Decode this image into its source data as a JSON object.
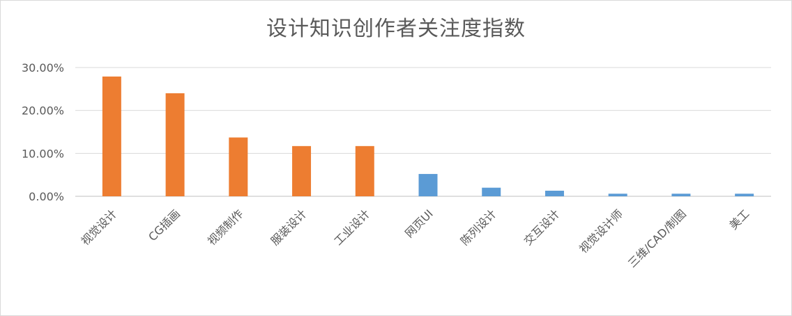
{
  "chart_data": {
    "type": "bar",
    "title": "设计知识创作者关注度指数",
    "categories": [
      "视觉设计",
      "CG插画",
      "视频制作",
      "服装设计",
      "工业设计",
      "网页UI",
      "陈列设计",
      "交互设计",
      "视觉设计师",
      "三维/CAD/制图",
      "美工"
    ],
    "values": [
      27.9,
      24.0,
      13.7,
      11.7,
      11.7,
      5.2,
      2.0,
      1.3,
      0.6,
      0.6,
      0.6
    ],
    "colors": [
      "#ed7d31",
      "#ed7d31",
      "#ed7d31",
      "#ed7d31",
      "#ed7d31",
      "#5b9bd5",
      "#5b9bd5",
      "#5b9bd5",
      "#5b9bd5",
      "#5b9bd5",
      "#5b9bd5"
    ],
    "yticks": [
      "0.00%",
      "10.00%",
      "20.00%",
      "30.00%"
    ],
    "ylim": [
      0,
      30
    ],
    "xlabel": "",
    "ylabel": "",
    "grid": true
  }
}
